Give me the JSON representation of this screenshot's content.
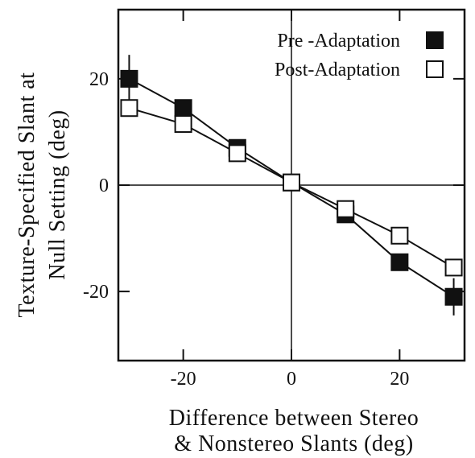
{
  "chart_data": {
    "type": "line",
    "title": "",
    "xlabel_lines": [
      "Difference between Stereo",
      "& Nonstereo Slants (deg)"
    ],
    "ylabel_lines": [
      "Texture-Specified Slant at",
      "Null Setting (deg)"
    ],
    "xlim": [
      -32,
      32
    ],
    "ylim": [
      -33,
      33
    ],
    "x_ticks": [
      -20,
      0,
      20
    ],
    "y_ticks": [
      20,
      0,
      -20
    ],
    "grid": false,
    "reference_lines": {
      "x": 0,
      "y": 0
    },
    "legend_position": "top-right",
    "x": [
      -30,
      -20,
      -10,
      0,
      10,
      20,
      30
    ],
    "series": [
      {
        "name": "Pre -Adaptation",
        "marker": "filled-square",
        "color": "#111111",
        "values": [
          20,
          14.5,
          7,
          0.5,
          -5.5,
          -14.5,
          -21
        ],
        "error": [
          4.5,
          0,
          0,
          0,
          0,
          0,
          3.5
        ]
      },
      {
        "name": "Post-Adaptation",
        "marker": "open-square",
        "color": "#111111",
        "values": [
          14.5,
          11.5,
          6,
          0.5,
          -4.5,
          -9.5,
          -15.5
        ],
        "error": [
          0,
          0,
          0,
          0,
          0,
          0,
          0
        ]
      }
    ]
  }
}
